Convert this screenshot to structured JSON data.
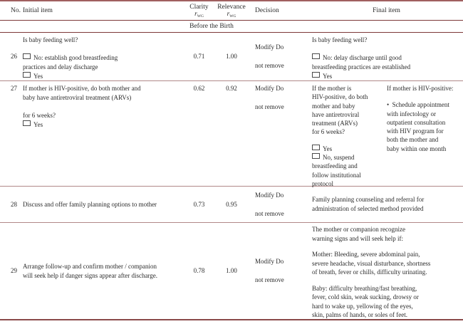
{
  "header": {
    "no": "No.",
    "initial": "Initial item",
    "clarity": "Clarity",
    "relevance": "Relevance",
    "r": "r",
    "r_sub": "WG",
    "decision": "Decision",
    "final": "Final item"
  },
  "section_title": "Before the Birth",
  "rows": [
    {
      "no": "26",
      "initial": {
        "question": "Is baby feeding well?",
        "opt_no": "No: establish good breastfeeding\npractices and delay discharge",
        "opt_yes": "Yes"
      },
      "clarity": "0.71",
      "relevance": "1.00",
      "decision": "Modify Do\n\nnot remove",
      "final": {
        "question": "Is baby feeding well?",
        "opt_no": "No: delay discharge until good\nbreastfeeding practices are established",
        "opt_yes": "Yes"
      }
    },
    {
      "no": "27",
      "initial": {
        "para": "If mother is HIV-positive, do both mother and\nbaby have antiretroviral treatment (ARVs)",
        "line2": "for 6 weeks?",
        "opt_yes": "Yes"
      },
      "clarity": "0.62",
      "relevance": "0.92",
      "decision": "Modify Do\n\nnot remove",
      "final_left": {
        "para": "If the mother is\nHIV-positive, do both\nmother and baby\nhave antiretroviral\ntreatment (ARVs)\nfor 6 weeks?",
        "opt_yes": "Yes",
        "opt_no": "No, suspend\nbreastfeeding and\nfollow institutional\nprotocol"
      },
      "final_right": {
        "heading": "If mother is HIV-positive:",
        "bullet": "•  Schedule appointment\nwith infectology or\noutpatient consultation\nwith HIV program for\nboth the mother and\nbaby within one month"
      }
    },
    {
      "no": "28",
      "initial": {
        "text": "Discuss and offer family planning options to mother"
      },
      "clarity": "0.73",
      "relevance": "0.95",
      "decision": "Modify Do\n\nnot remove",
      "final": {
        "text": "Family planning counseling and referral for\nadministration of selected method provided"
      }
    },
    {
      "no": "29",
      "initial": {
        "text": "Arrange follow-up and confirm mother / companion\nwill seek help if danger signs appear after discharge."
      },
      "clarity": "0.78",
      "relevance": "1.00",
      "decision": "Modify Do\n\nnot remove",
      "final": {
        "p1": "The mother or companion recognize\nwarning signs and will seek help if:",
        "p2": "Mother: Bleeding, severe abdominal pain,\nsevere headache, visual disturbance, shortness\nof breath, fever or chills, difficulty urinating.",
        "p3": "Baby: difficulty breathing/fast breathing,\nfever, cold skin, weak sucking, drowsy or\nhard to wake up, yellowing of the eyes,\nskin, palms of hands, or soles of feet."
      }
    }
  ],
  "colors": {
    "rule_top": "#a06060",
    "rule_dark": "#7d3939",
    "rule_light": "#b18989",
    "rule_bottom": "#8a4a4a",
    "text": "#2b2b2b"
  }
}
